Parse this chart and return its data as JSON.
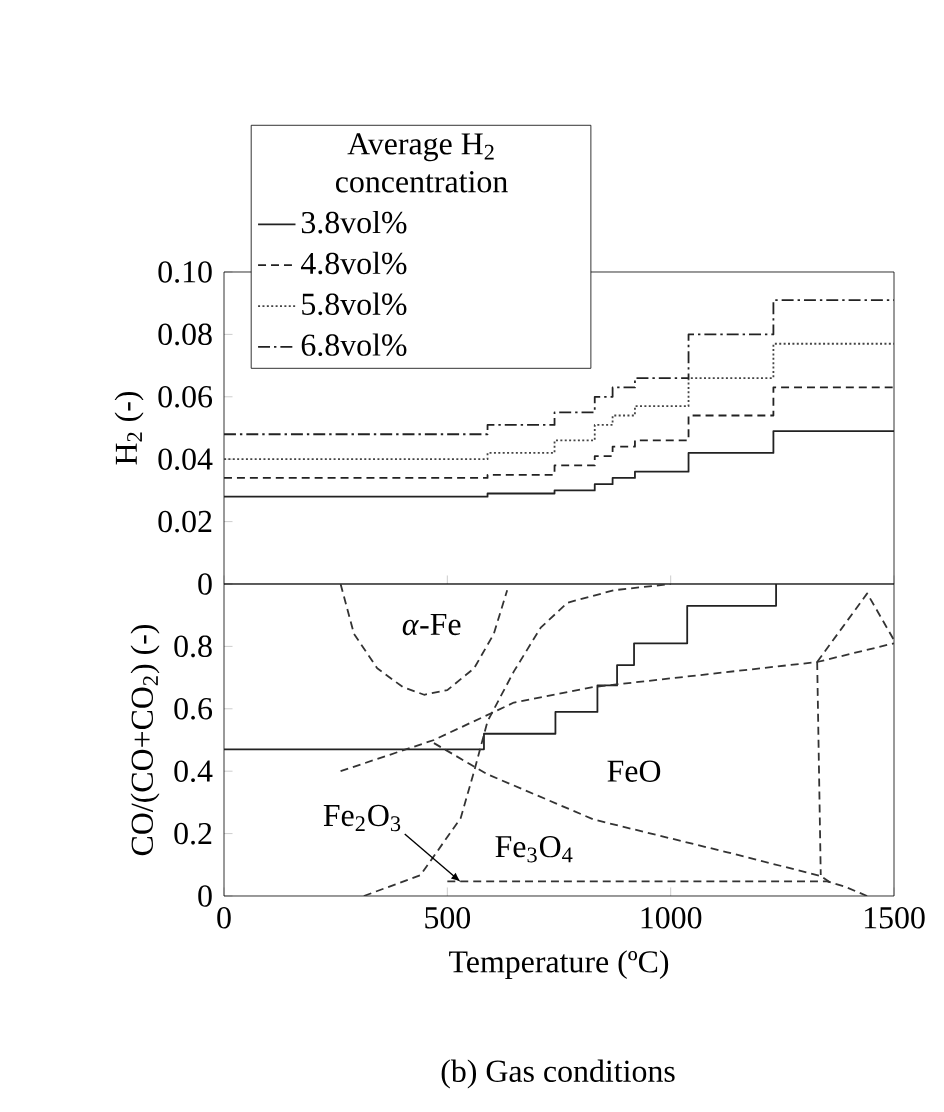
{
  "chart_data": [
    {
      "type": "step",
      "ylabel": "H$_{2}$ (-)",
      "legend": "top left",
      "legend_title": "Average H$_{2}$ concentration",
      "tick_labels": "y",
      "xlim": [
        0,
        1500
      ],
      "xticks": [
        0,
        500,
        1000,
        1500
      ],
      "ylim": [
        0,
        0.1
      ],
      "yticks": [
        0,
        0.02,
        0.04,
        0.06,
        0.08,
        {
          "value": 0.1,
          "label": "0.10"
        }
      ],
      "series": [
        {
          "name": "3.8vol%",
          "color": "#222222",
          "line_style": "solid",
          "x": [
            0,
            590,
            740,
            830,
            870,
            920,
            1040,
            1230,
            1500
          ],
          "values": [
            0.028,
            0.029,
            0.03,
            0.032,
            0.034,
            0.036,
            0.042,
            0.049,
            0.049
          ]
        },
        {
          "name": "4.8vol%",
          "color": "#222222",
          "line_style": "dashed",
          "x": [
            0,
            590,
            740,
            830,
            870,
            920,
            1040,
            1230,
            1500
          ],
          "values": [
            0.034,
            0.035,
            0.038,
            0.041,
            0.044,
            0.046,
            0.054,
            0.063,
            0.063
          ]
        },
        {
          "name": "5.8vol%",
          "color": "#444444",
          "line_style": "dotted",
          "x": [
            0,
            590,
            740,
            830,
            870,
            920,
            1040,
            1230,
            1500
          ],
          "values": [
            0.04,
            0.042,
            0.046,
            0.051,
            0.054,
            0.057,
            0.066,
            0.077,
            0.077
          ]
        },
        {
          "name": "6.8vol%",
          "color": "#222222",
          "line_style": "dashdot",
          "x": [
            0,
            590,
            740,
            830,
            870,
            920,
            1040,
            1230,
            1500
          ],
          "values": [
            0.048,
            0.051,
            0.055,
            0.06,
            0.063,
            0.066,
            0.08,
            0.091,
            0.091
          ]
        }
      ]
    },
    {
      "type": "line",
      "xlabel": "Temperature (ºC)",
      "ylabel": "CO/(CO+CO$_{2}$) (-)",
      "xlim": [
        0,
        1500
      ],
      "xticks": [
        0,
        500,
        1000,
        1500
      ],
      "ylim": [
        0,
        1
      ],
      "yticks": [
        0,
        0.2,
        0.4,
        0.6,
        0.8,
        {
          "value": 1,
          "label": null
        }
      ],
      "annotations": [
        {
          "text": "Fe$_{2}$O$_{3}$",
          "x": 530,
          "y": 0.045
        },
        "*α*-Fe",
        "FeO",
        "Fe$_{3}$O$_{4}$",
        "(b) Gas conditions"
      ],
      "series": [
        {
          "type": "step",
          "color": "#222222",
          "line_style": "solid",
          "x": [
            0,
            582,
            742,
            836,
            880,
            918,
            1037,
            1236
          ],
          "values": [
            0.47,
            0.52,
            0.59,
            0.675,
            0.74,
            0.81,
            0.93,
            1.0
          ]
        },
        {
          "color": "#333333",
          "line_style": "dashed",
          "x": [
            261,
            291,
            343,
            400,
            448,
            500,
            560,
            604,
            634
          ],
          "values": [
            1.0,
            0.84,
            0.73,
            0.67,
            0.645,
            0.66,
            0.73,
            0.84,
            0.98
          ]
        },
        {
          "color": "#333333",
          "line_style": "dashed",
          "x": [
            313,
            440,
            530,
            560,
            590,
            649,
            709,
            769,
            873,
            1000
          ],
          "values": [
            0,
            0.067,
            0.25,
            0.4,
            0.56,
            0.72,
            0.86,
            0.94,
            0.98,
            1.0
          ]
        },
        {
          "color": "#333333",
          "line_style": "dashed",
          "x": [
            261,
            470,
            649,
            828,
            1328,
            1500
          ],
          "values": [
            0.4,
            0.5,
            0.62,
            0.67,
            0.75,
            0.81
          ]
        },
        {
          "color": "#333333",
          "line_style": "dashed",
          "x": [
            470,
            590,
            828,
            1127,
            1336,
            1366
          ],
          "values": [
            0.49,
            0.39,
            0.245,
            0.14,
            0.064,
            0.035
          ]
        },
        {
          "color": "#333333",
          "line_style": "dashed",
          "x": [
            1328,
            1336
          ],
          "values": [
            0.75,
            0.067
          ]
        },
        {
          "color": "#333333",
          "line_style": "dashed",
          "x": [
            500,
            1350,
            1390,
            1440
          ],
          "values": [
            0.047,
            0.047,
            0.03,
            0
          ]
        },
        {
          "color": "#333333",
          "line_style": "dashed",
          "x": [
            1328,
            1440,
            1500
          ],
          "values": [
            0.75,
            0.97,
            0.82
          ]
        }
      ]
    }
  ]
}
